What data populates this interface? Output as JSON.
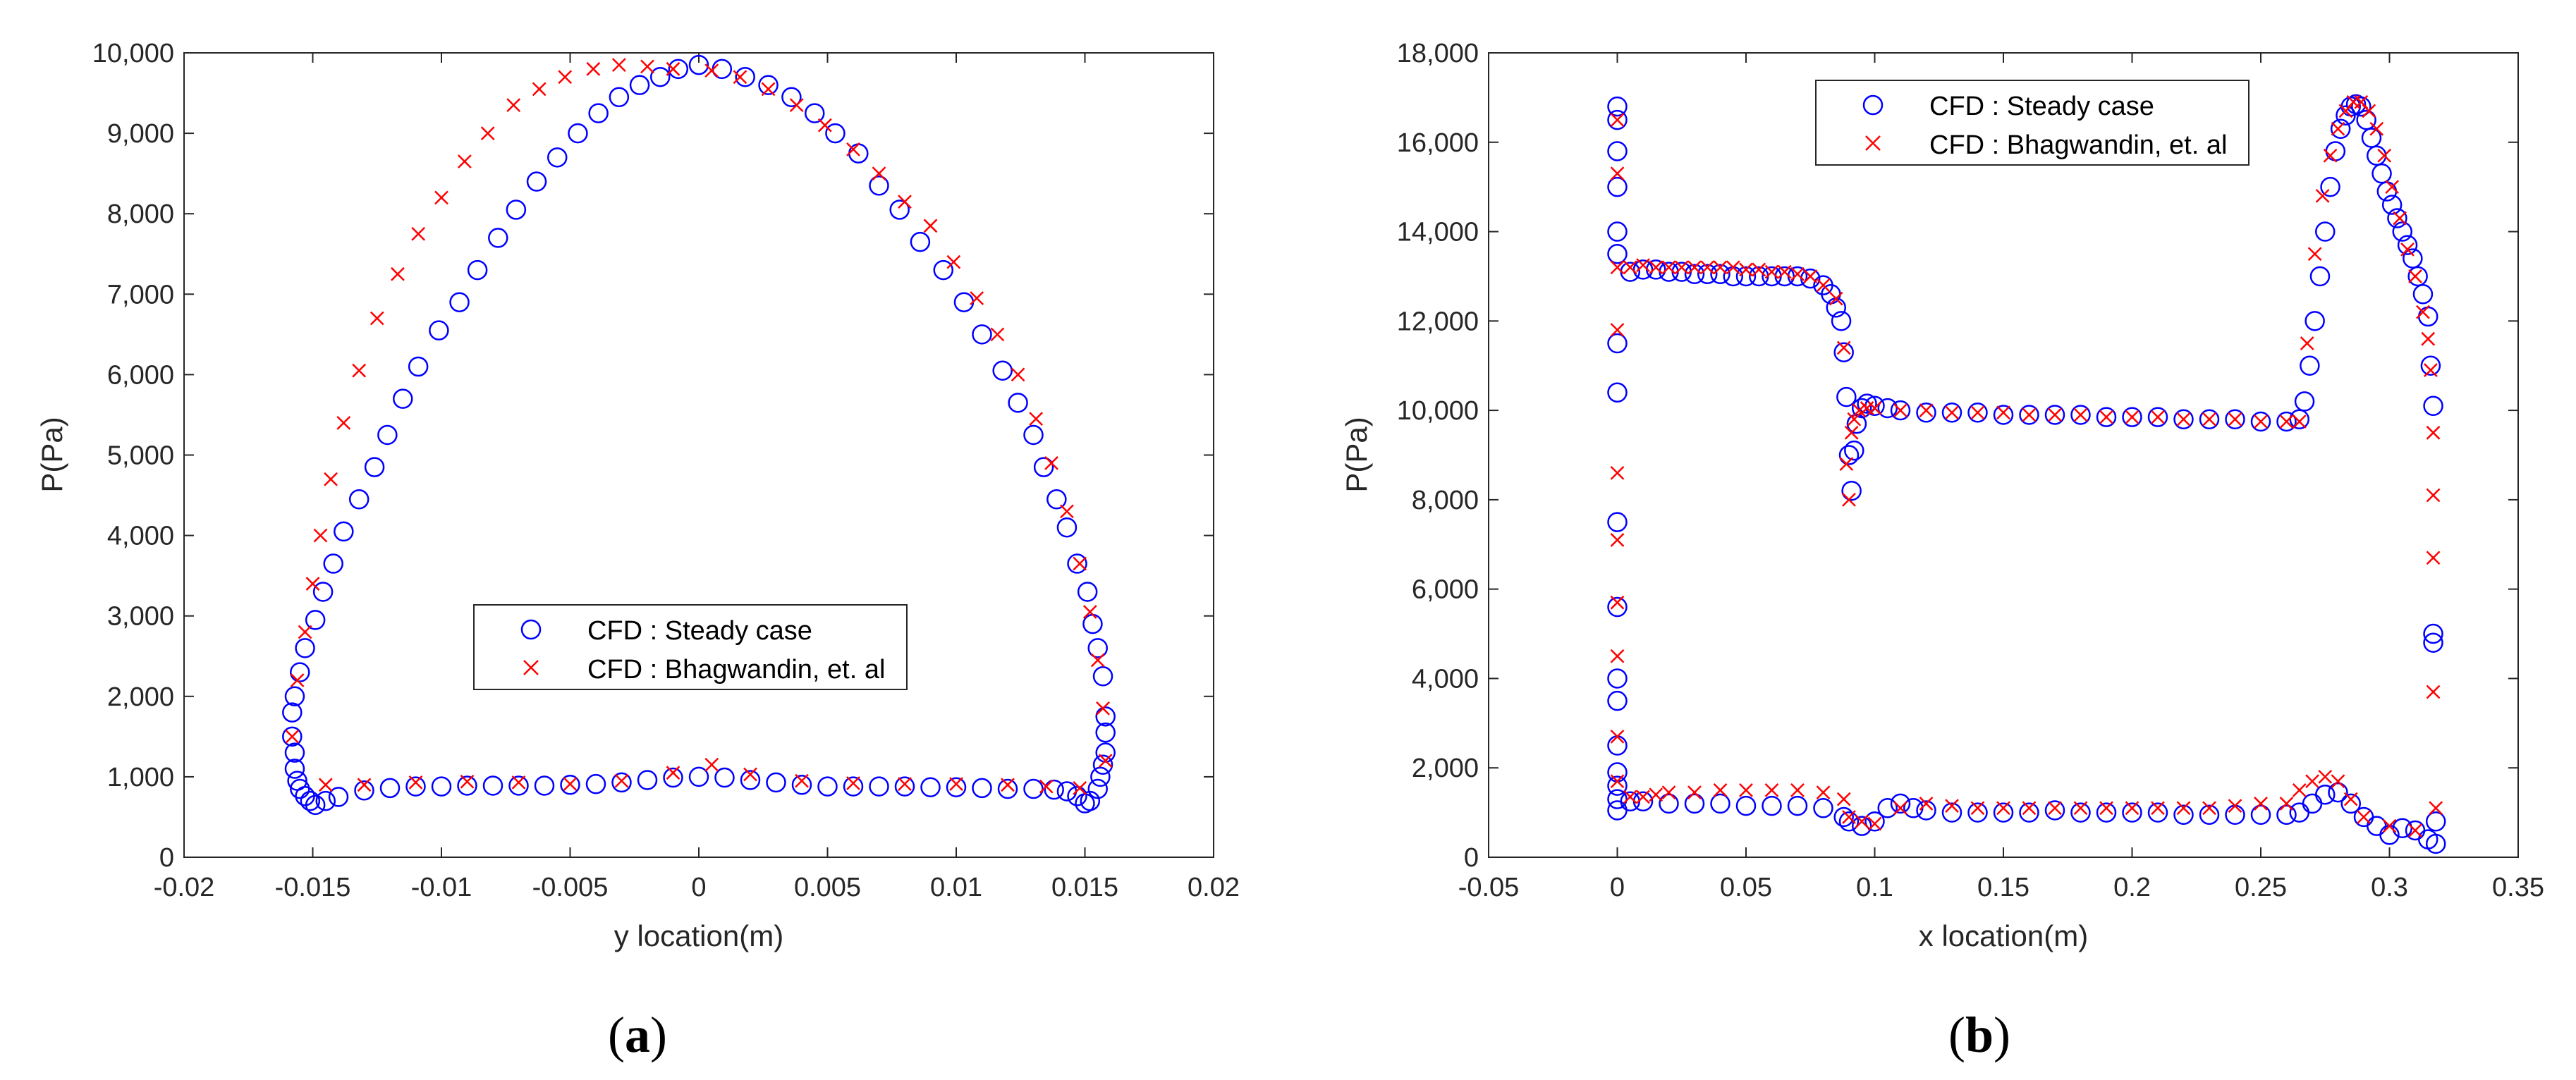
{
  "figure": {
    "panel_labels": [
      "a",
      "b"
    ]
  },
  "colors": {
    "steady": "#0000ff",
    "bhagwandin": "#ff0000",
    "axis": "#262626"
  },
  "chart_data": [
    {
      "type": "scatter",
      "panel": "a",
      "xlabel": "y location(m)",
      "ylabel": "P(Pa)",
      "xlim": [
        -0.02,
        0.02
      ],
      "ylim": [
        0,
        10000
      ],
      "xticks": [
        -0.02,
        -0.015,
        -0.01,
        -0.005,
        0,
        0.005,
        0.01,
        0.015,
        0.02
      ],
      "xtick_labels": [
        "-0.02",
        "-0.015",
        "-0.01",
        "-0.005",
        "0",
        "0.005",
        "0.01",
        "0.015",
        "0.02"
      ],
      "yticks": [
        0,
        1000,
        2000,
        3000,
        4000,
        5000,
        6000,
        7000,
        8000,
        9000,
        10000
      ],
      "ytick_labels": [
        "0",
        "1,000",
        "2,000",
        "3,000",
        "4,000",
        "5,000",
        "6,000",
        "7,000",
        "8,000",
        "9,000",
        "10,000"
      ],
      "grid": false,
      "legend_position": "center",
      "series": [
        {
          "name": "CFD : Steady case",
          "marker": "circle",
          "x": [
            -0.0158,
            -0.0158,
            -0.0157,
            -0.0157,
            -0.0156,
            -0.0155,
            -0.0153,
            -0.0151,
            -0.0149,
            -0.0145,
            -0.014,
            -0.013,
            -0.012,
            -0.011,
            -0.01,
            -0.009,
            -0.008,
            -0.007,
            -0.006,
            -0.005,
            -0.004,
            -0.003,
            -0.002,
            -0.001,
            0,
            0.001,
            0.002,
            0.003,
            0.004,
            0.005,
            0.006,
            0.007,
            0.008,
            0.009,
            0.01,
            0.011,
            0.012,
            0.013,
            0.0138,
            0.0143,
            0.0147,
            0.015,
            0.0152,
            0.0155,
            0.0156,
            0.0157,
            0.0158,
            0.0158,
            0.0158,
            -0.0157,
            -0.0155,
            -0.0153,
            -0.0149,
            -0.0146,
            -0.0142,
            -0.0138,
            -0.0132,
            -0.0126,
            -0.0121,
            -0.0115,
            -0.0109,
            -0.0101,
            -0.0093,
            -0.0086,
            -0.0078,
            -0.0071,
            -0.0063,
            -0.0055,
            -0.0047,
            -0.0039,
            -0.0031,
            -0.0023,
            -0.0015,
            -0.0008,
            0,
            0.0009,
            0.0018,
            0.0027,
            0.0036,
            0.0045,
            0.0053,
            0.0062,
            0.007,
            0.0078,
            0.0086,
            0.0095,
            0.0103,
            0.011,
            0.0118,
            0.0124,
            0.013,
            0.0134,
            0.0139,
            0.0143,
            0.0147,
            0.0151,
            0.0153,
            0.0155,
            0.0157
          ],
          "y": [
            1800,
            1500,
            1300,
            1100,
            950,
            850,
            760,
            700,
            650,
            700,
            750,
            830,
            860,
            880,
            880,
            890,
            890,
            890,
            890,
            900,
            910,
            930,
            960,
            990,
            1000,
            990,
            960,
            930,
            900,
            880,
            880,
            880,
            880,
            870,
            870,
            860,
            850,
            850,
            840,
            820,
            760,
            670,
            700,
            850,
            1000,
            1150,
            1300,
            1550,
            1750,
            2000,
            2300,
            2600,
            2950,
            3300,
            3650,
            4050,
            4450,
            4850,
            5250,
            5700,
            6100,
            6550,
            6900,
            7300,
            7700,
            8050,
            8400,
            8700,
            9000,
            9250,
            9450,
            9600,
            9700,
            9800,
            9850,
            9800,
            9700,
            9600,
            9450,
            9250,
            9000,
            8750,
            8350,
            8050,
            7650,
            7300,
            6900,
            6500,
            6050,
            5650,
            5250,
            4850,
            4450,
            4100,
            3650,
            3300,
            2900,
            2600,
            2250
          ]
        },
        {
          "name": "CFD : Bhagwandin, et. al",
          "marker": "x",
          "x": [
            -0.0158,
            -0.0156,
            -0.0153,
            -0.015,
            -0.0147,
            -0.0143,
            -0.0138,
            -0.0132,
            -0.0125,
            -0.0117,
            -0.0109,
            -0.01,
            -0.0091,
            -0.0082,
            -0.0072,
            -0.0062,
            -0.0052,
            -0.0041,
            -0.0031,
            -0.002,
            -0.001,
            0.0005,
            0.0016,
            0.0027,
            0.0038,
            0.0049,
            0.006,
            0.007,
            0.008,
            0.009,
            0.0099,
            0.0108,
            0.0116,
            0.0124,
            0.0131,
            0.0137,
            0.0143,
            0.0148,
            0.0152,
            0.0155,
            0.0157,
            0.0158,
            -0.0145,
            -0.013,
            -0.011,
            -0.009,
            -0.007,
            -0.005,
            -0.003,
            -0.001,
            0.0005,
            0.002,
            0.004,
            0.006,
            0.008,
            0.01,
            0.012,
            0.0135,
            0.0148
          ],
          "y": [
            1500,
            2200,
            2800,
            3400,
            4000,
            4700,
            5400,
            6050,
            6700,
            7250,
            7750,
            8200,
            8650,
            9000,
            9350,
            9550,
            9700,
            9800,
            9850,
            9830,
            9800,
            9780,
            9700,
            9550,
            9350,
            9100,
            8800,
            8500,
            8150,
            7850,
            7400,
            6950,
            6500,
            6000,
            5450,
            4900,
            4300,
            3650,
            3050,
            2450,
            1850,
            1200,
            900,
            900,
            930,
            940,
            930,
            910,
            950,
            1050,
            1150,
            1030,
            950,
            920,
            910,
            910,
            900,
            880,
            860
          ]
        }
      ],
      "legend": [
        "CFD : Steady case",
        "CFD : Bhagwandin, et. al"
      ]
    },
    {
      "type": "scatter",
      "panel": "b",
      "xlabel": "x location(m)",
      "ylabel": "P(Pa)",
      "xlim": [
        -0.05,
        0.35
      ],
      "ylim": [
        0,
        18000
      ],
      "xticks": [
        -0.05,
        0,
        0.05,
        0.1,
        0.15,
        0.2,
        0.25,
        0.3,
        0.35
      ],
      "xtick_labels": [
        "-0.05",
        "0",
        "0.05",
        "0.1",
        "0.15",
        "0.2",
        "0.25",
        "0.3",
        "0.35"
      ],
      "yticks": [
        0,
        2000,
        4000,
        6000,
        8000,
        10000,
        12000,
        14000,
        16000,
        18000
      ],
      "ytick_labels": [
        "0",
        "2,000",
        "4,000",
        "6,000",
        "8,000",
        "10,000",
        "12,000",
        "14,000",
        "16,000",
        "18,000"
      ],
      "grid": false,
      "legend_position": "top-center",
      "series": [
        {
          "name": "CFD : Steady case",
          "marker": "circle",
          "x": [
            0,
            0,
            0,
            0,
            0,
            0,
            0,
            0,
            0,
            0,
            0,
            0,
            0,
            0,
            0,
            0,
            0.005,
            0.01,
            0.015,
            0.02,
            0.025,
            0.03,
            0.035,
            0.04,
            0.045,
            0.05,
            0.055,
            0.06,
            0.065,
            0.07,
            0.075,
            0.08,
            0.083,
            0.085,
            0.087,
            0.088,
            0.089,
            0.09,
            0.091,
            0.092,
            0.093,
            0.095,
            0.097,
            0.1,
            0.105,
            0.11,
            0.12,
            0.13,
            0.14,
            0.15,
            0.16,
            0.17,
            0.18,
            0.19,
            0.2,
            0.21,
            0.22,
            0.23,
            0.24,
            0.25,
            0.26,
            0.265,
            0.267,
            0.269,
            0.271,
            0.273,
            0.275,
            0.277,
            0.279,
            0.281,
            0.283,
            0.285,
            0.287,
            0.289,
            0.291,
            0.293,
            0.295,
            0.297,
            0.299,
            0.301,
            0.303,
            0.305,
            0.307,
            0.309,
            0.311,
            0.313,
            0.315,
            0.316,
            0.317,
            0.317,
            0.317,
            0,
            0.005,
            0.01,
            0.02,
            0.03,
            0.04,
            0.05,
            0.06,
            0.07,
            0.08,
            0.088,
            0.09,
            0.095,
            0.1,
            0.105,
            0.11,
            0.115,
            0.12,
            0.13,
            0.14,
            0.15,
            0.16,
            0.17,
            0.18,
            0.19,
            0.2,
            0.21,
            0.22,
            0.23,
            0.24,
            0.25,
            0.26,
            0.265,
            0.27,
            0.275,
            0.28,
            0.285,
            0.29,
            0.295,
            0.3,
            0.305,
            0.31,
            0.315,
            0.318,
            0.318
          ],
          "y": [
            16800,
            16500,
            15800,
            15000,
            14000,
            13500,
            11500,
            10400,
            7500,
            5600,
            4000,
            3500,
            2500,
            1900,
            1600,
            1050,
            13100,
            13150,
            13150,
            13100,
            13100,
            13050,
            13050,
            13050,
            13000,
            13000,
            13000,
            13000,
            13000,
            13000,
            12950,
            12800,
            12600,
            12300,
            12000,
            11300,
            10300,
            9000,
            8200,
            9100,
            9700,
            10050,
            10150,
            10100,
            10050,
            10000,
            9950,
            9950,
            9950,
            9900,
            9900,
            9900,
            9900,
            9850,
            9850,
            9850,
            9800,
            9800,
            9800,
            9750,
            9750,
            9800,
            10200,
            11000,
            12000,
            13000,
            14000,
            15000,
            15800,
            16300,
            16600,
            16800,
            16850,
            16800,
            16500,
            16100,
            15700,
            15300,
            14900,
            14600,
            14300,
            14000,
            13700,
            13400,
            13000,
            12600,
            12100,
            11000,
            10100,
            5000,
            4800,
            1300,
            1250,
            1250,
            1200,
            1200,
            1200,
            1150,
            1150,
            1150,
            1100,
            900,
            800,
            700,
            800,
            1100,
            1200,
            1100,
            1050,
            1000,
            1000,
            1000,
            1000,
            1050,
            1000,
            1000,
            1000,
            1000,
            950,
            950,
            950,
            950,
            950,
            1000,
            1200,
            1400,
            1450,
            1200,
            900,
            700,
            500,
            650,
            600,
            400,
            300,
            800
          ]
        },
        {
          "name": "CFD : Bhagwandin, et. al",
          "marker": "x",
          "x": [
            0,
            0,
            0,
            0,
            0,
            0,
            0,
            0,
            0,
            0,
            0.005,
            0.01,
            0.015,
            0.02,
            0.025,
            0.03,
            0.035,
            0.04,
            0.045,
            0.05,
            0.055,
            0.06,
            0.065,
            0.07,
            0.075,
            0.08,
            0.085,
            0.088,
            0.089,
            0.09,
            0.091,
            0.092,
            0.094,
            0.097,
            0.1,
            0.11,
            0.12,
            0.13,
            0.14,
            0.15,
            0.16,
            0.17,
            0.18,
            0.19,
            0.2,
            0.21,
            0.22,
            0.23,
            0.24,
            0.25,
            0.26,
            0.265,
            0.268,
            0.271,
            0.274,
            0.277,
            0.28,
            0.283,
            0.286,
            0.289,
            0.292,
            0.295,
            0.298,
            0.301,
            0.304,
            0.307,
            0.31,
            0.313,
            0.315,
            0.316,
            0.317,
            0.317,
            0.317,
            0.317,
            0.005,
            0.01,
            0.015,
            0.02,
            0.03,
            0.04,
            0.05,
            0.06,
            0.07,
            0.08,
            0.088,
            0.09,
            0.095,
            0.1,
            0.11,
            0.12,
            0.13,
            0.14,
            0.15,
            0.16,
            0.17,
            0.18,
            0.19,
            0.2,
            0.21,
            0.22,
            0.23,
            0.24,
            0.25,
            0.26,
            0.265,
            0.27,
            0.275,
            0.28,
            0.285,
            0.29,
            0.3,
            0.31,
            0.318
          ],
          "y": [
            16500,
            15300,
            13200,
            11800,
            8600,
            7100,
            5700,
            4500,
            2700,
            1700,
            13200,
            13250,
            13200,
            13200,
            13200,
            13200,
            13200,
            13200,
            13200,
            13150,
            13150,
            13100,
            13100,
            13050,
            13000,
            12800,
            12500,
            11400,
            8800,
            8000,
            9500,
            9800,
            10000,
            10050,
            10050,
            10000,
            10000,
            9950,
            9950,
            9950,
            9900,
            9900,
            9900,
            9850,
            9850,
            9850,
            9800,
            9800,
            9800,
            9750,
            9750,
            9750,
            11500,
            13500,
            14800,
            15700,
            16300,
            16700,
            16900,
            16900,
            16700,
            16300,
            15700,
            15000,
            14300,
            13600,
            13000,
            12200,
            11600,
            10900,
            9500,
            8100,
            6700,
            3700,
            1350,
            1350,
            1400,
            1450,
            1450,
            1500,
            1500,
            1500,
            1500,
            1450,
            1300,
            900,
            800,
            750,
            1100,
            1200,
            1150,
            1100,
            1100,
            1100,
            1100,
            1100,
            1100,
            1100,
            1100,
            1100,
            1100,
            1150,
            1200,
            1200,
            1500,
            1700,
            1800,
            1700,
            1300,
            900,
            700,
            600,
            1100
          ]
        }
      ],
      "legend": [
        "CFD : Steady case",
        "CFD : Bhagwandin, et. al"
      ]
    }
  ]
}
